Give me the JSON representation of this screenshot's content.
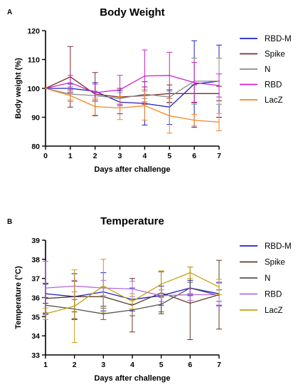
{
  "chart_data": [
    {
      "panel": "A",
      "type": "line",
      "title": "Body Weight",
      "xlabel": "Days after challenge",
      "ylabel": "Body weight (%)",
      "xlim": [
        0,
        7
      ],
      "ylim": [
        80,
        120
      ],
      "xticks": [
        0,
        1,
        2,
        3,
        4,
        5,
        6,
        7
      ],
      "yticks": [
        80,
        90,
        100,
        110,
        120
      ],
      "x": [
        0,
        1,
        2,
        3,
        4,
        5,
        6,
        7
      ],
      "legend_position": "right",
      "series": [
        {
          "name": "RBD-M",
          "color": "#2020c8",
          "values": [
            100,
            100,
            99,
            95.2,
            94.8,
            93.5,
            101.5,
            102.5
          ],
          "errors": [
            0,
            1.5,
            3,
            4,
            7.5,
            6,
            15,
            12.5
          ]
        },
        {
          "name": "Spike",
          "color": "#7a2e2e",
          "values": [
            100,
            104,
            98,
            97,
            97.5,
            98.2,
            98.2,
            98.2
          ],
          "errors": [
            0,
            10.5,
            7.5,
            3,
            3,
            3,
            3,
            2.5
          ]
        },
        {
          "name": "N",
          "color": "#8a8a8a",
          "values": [
            100,
            98,
            97.5,
            96.5,
            98,
            97,
            102.5,
            102.5
          ],
          "errors": [
            0,
            2.5,
            1.5,
            2,
            1.5,
            2,
            8,
            8
          ]
        },
        {
          "name": "RBD",
          "color": "#cc22cc",
          "values": [
            100,
            102,
            98.5,
            99.5,
            104.3,
            104.5,
            102,
            101
          ],
          "errors": [
            0,
            2.5,
            3,
            5,
            9,
            8,
            7,
            4
          ]
        },
        {
          "name": "LacZ",
          "color": "#f5861f",
          "values": [
            100,
            97.5,
            93.7,
            93.2,
            94,
            90.5,
            89,
            88.3
          ],
          "errors": [
            0,
            1.5,
            3,
            4,
            5,
            6,
            2,
            3
          ]
        }
      ]
    },
    {
      "panel": "B",
      "type": "line",
      "title": "Temperature",
      "xlabel": "Days after challenge",
      "ylabel": "Temperature (°C)",
      "xlim": [
        1,
        7
      ],
      "ylim": [
        33,
        39
      ],
      "xticks": [
        1,
        2,
        3,
        4,
        5,
        6,
        7
      ],
      "yticks": [
        33,
        34,
        35,
        36,
        37,
        38,
        39
      ],
      "x": [
        1,
        2,
        3,
        4,
        5,
        6,
        7
      ],
      "legend_position": "right",
      "series": [
        {
          "name": "RBD-M",
          "color": "#2020c8",
          "values": [
            36.2,
            36.05,
            36.3,
            35.9,
            36.1,
            36.5,
            36.2
          ],
          "errors": [
            0.5,
            1.2,
            1.0,
            0.6,
            0.5,
            0.4,
            0.6
          ]
        },
        {
          "name": "Spike",
          "color": "#5a3c2a",
          "values": [
            35.95,
            36.05,
            36.05,
            35.6,
            36.25,
            35.7,
            36.15
          ],
          "errors": [
            0.8,
            0.8,
            0.5,
            1.4,
            1.1,
            1.9,
            1.8
          ]
        },
        {
          "name": "N",
          "color": "#555555",
          "values": [
            35.6,
            35.4,
            35.15,
            35.35,
            35.65,
            36.5,
            36.1
          ],
          "errors": [
            0.4,
            0.5,
            0.3,
            0.3,
            0.4,
            0.3,
            0.3
          ]
        },
        {
          "name": "RBD",
          "color": "#b06ae0",
          "values": [
            36.5,
            36.6,
            36.5,
            36.45,
            36.1,
            36.15,
            36.15
          ],
          "errors": [
            1.4,
            0.3,
            0.4,
            0.4,
            0.3,
            0.3,
            0.6
          ]
        },
        {
          "name": "LacZ",
          "color": "#c8a010",
          "values": [
            35.15,
            35.55,
            36.6,
            35.8,
            36.7,
            37.3,
            36.55
          ],
          "errors": [
            0.3,
            1.9,
            1.4,
            0.4,
            0.7,
            0.3,
            0.4
          ]
        }
      ]
    }
  ]
}
